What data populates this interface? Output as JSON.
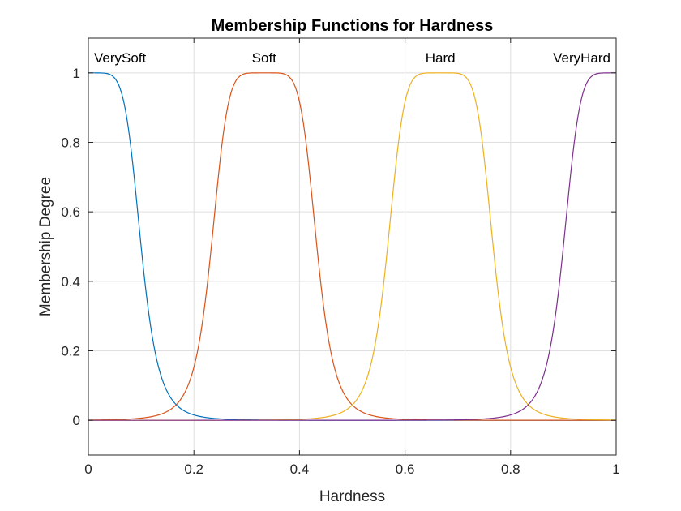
{
  "chart_data": {
    "type": "line",
    "title": "Membership Functions for Hardness",
    "xlabel": "Hardness",
    "ylabel": "Membership Degree",
    "xlim": [
      0,
      1
    ],
    "ylim": [
      -0.1,
      1.1
    ],
    "xticks": [
      0,
      0.2,
      0.4,
      0.6,
      0.8,
      1
    ],
    "xtick_labels": [
      "0",
      "0.2",
      "0.4",
      "0.6",
      "0.8",
      "1"
    ],
    "yticks": [
      0,
      0.2,
      0.4,
      0.6,
      0.8,
      1
    ],
    "ytick_labels": [
      "0",
      "0.2",
      "0.4",
      "0.6",
      "0.8",
      "1"
    ],
    "grid": true,
    "mf_type": "gbellmf",
    "series": [
      {
        "name": "VerySoft",
        "color": "#0072BD",
        "params": {
          "a": 0.1,
          "b": 3,
          "c": 0
        }
      },
      {
        "name": "Soft",
        "color": "#D95319",
        "params": {
          "a": 0.1,
          "b": 3,
          "c": 0.333
        }
      },
      {
        "name": "Hard",
        "color": "#EDB120",
        "params": {
          "a": 0.1,
          "b": 3,
          "c": 0.667
        }
      },
      {
        "name": "VeryHard",
        "color": "#7E2F8E",
        "params": {
          "a": 0.1,
          "b": 3,
          "c": 1
        }
      }
    ]
  }
}
